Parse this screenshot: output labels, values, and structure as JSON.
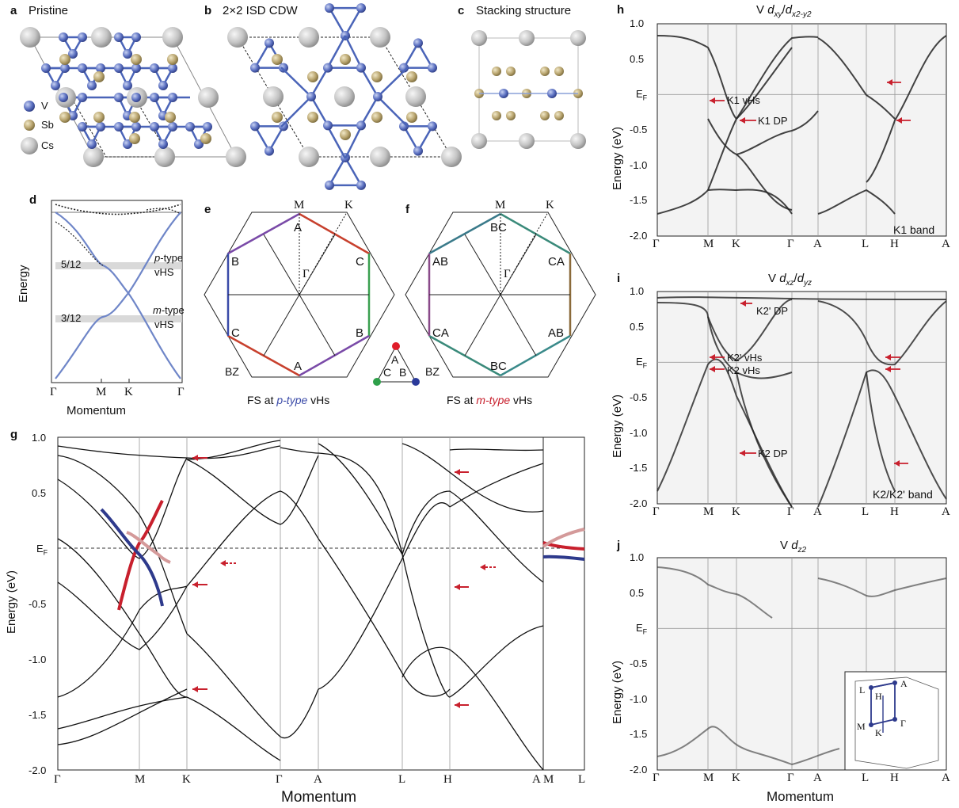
{
  "panels": {
    "a": {
      "label": "a",
      "title": "Pristine",
      "legend": [
        "V",
        "Sb",
        "Cs"
      ]
    },
    "b": {
      "label": "b",
      "title": "2×2 ISD CDW"
    },
    "c": {
      "label": "c",
      "title": "Stacking structure"
    },
    "d": {
      "label": "d",
      "ylabel": "Energy",
      "xlabel": "Momentum",
      "ticks": [
        "Γ",
        "M",
        "K",
        "Γ"
      ],
      "annotations": {
        "fill1": "5/12",
        "fill2": "3/12",
        "p_type": "p",
        "p_rest": "-type",
        "vhs1": "vHS",
        "m_type": "m",
        "m_rest": "-type",
        "vhs2": "vHS"
      }
    },
    "e": {
      "label": "e",
      "M": "M",
      "K": "K",
      "Gamma": "Γ",
      "letters": {
        "top": "A",
        "ul": "B",
        "ur": "C",
        "ll": "C",
        "lr": "B",
        "bottom": "A"
      },
      "bz": "BZ",
      "caption_pre": "FS at ",
      "caption_type": "p-type",
      "caption_post": " vHs"
    },
    "f": {
      "label": "f",
      "M": "M",
      "K": "K",
      "Gamma": "Γ",
      "letters": {
        "top": "BC",
        "ul": "AB",
        "ur": "CA",
        "ll": "CA",
        "lr": "AB",
        "bottom": "BC"
      },
      "bz": "BZ",
      "caption_pre": "FS at ",
      "caption_type": "m-type",
      "caption_post": " vHs"
    },
    "legend_tri": {
      "A": "A",
      "B": "B",
      "C": "C"
    },
    "g": {
      "label": "g",
      "ylabel": "Energy (eV)",
      "xlabel": "Momentum",
      "yticks": [
        "1.0",
        "0.5",
        "E",
        "-0.5",
        "-1.0",
        "-1.5",
        "-2.0"
      ],
      "ef_sub": "F",
      "kpoints": [
        "Γ",
        "M",
        "K",
        "Γ",
        "A",
        "L",
        "H",
        "A"
      ],
      "inset_kpoints": [
        "M",
        "L"
      ]
    },
    "h": {
      "label": "h",
      "title_pre": "V ",
      "title_d1": "d",
      "title_s1": "xy",
      "title_mid": "/",
      "title_d2": "d",
      "title_s2": "x2-y2",
      "annot": [
        "K1 vHs",
        "K1 DP"
      ],
      "corner": "K1 band"
    },
    "i": {
      "label": "i",
      "title_pre": "V ",
      "title_d1": "d",
      "title_s1": "xz",
      "title_mid": "/",
      "title_d2": "d",
      "title_s2": "yz",
      "annot": [
        "K2' DP",
        "K2' vHs",
        "K2 vHs",
        "K2 DP"
      ],
      "corner": "K2/K2' band"
    },
    "j": {
      "label": "j",
      "title_pre": "V ",
      "title_d1": "d",
      "title_s1": "z2",
      "inset_labels": [
        "L",
        "H",
        "A",
        "M",
        "K",
        "Γ"
      ]
    },
    "right_axes": {
      "ylabel": "Energy (eV)",
      "xlabel": "Momentum",
      "yticks": [
        "1.0",
        "0.5",
        "E",
        "-0.5",
        "-1.0",
        "-1.5",
        "-2.0"
      ],
      "ef_sub": "F",
      "kpoints": [
        "Γ",
        "M",
        "K",
        "Γ",
        "A",
        "L",
        "H",
        "A"
      ]
    }
  },
  "colors": {
    "vanadium": "#5a6fc0",
    "antimony": "#b8a46e",
    "cesium": "#c4c4c4",
    "bond": "#4a64b8",
    "red_arrow": "#c8202d",
    "band_red": "#c8202d",
    "band_blue": "#2e3a8c",
    "band_pink": "#d49a9a"
  }
}
